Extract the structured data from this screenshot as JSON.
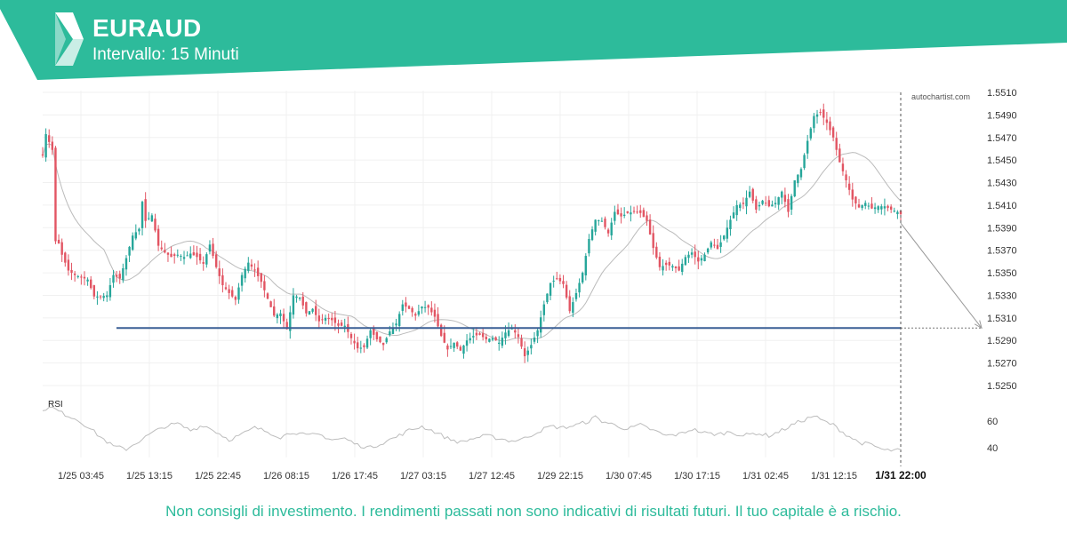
{
  "header": {
    "symbol": "EURAUD",
    "interval": "Intervallo: 15 Minuti"
  },
  "footer": {
    "disclaimer": "Non consigli di investimento. I rendimenti passati non sono indicativi di risultati futuri. Il tuo capitale è a rischio."
  },
  "colors": {
    "brand": "#2dbb9b",
    "up": "#26a69a",
    "down": "#e25563",
    "support": "#3a5f95",
    "ma": "#bbbbbb",
    "rsi": "#bdbdbd",
    "grid": "#f0f0f0",
    "axis_text": "#333333"
  },
  "chart_data": {
    "type": "candlestick",
    "watermark": "autochartist.com",
    "y_ticks": [
      1.551,
      1.549,
      1.547,
      1.545,
      1.543,
      1.541,
      1.539,
      1.537,
      1.535,
      1.533,
      1.531,
      1.529,
      1.527,
      1.525
    ],
    "ylim": [
      1.525,
      1.551
    ],
    "x_ticks": [
      "1/25 03:45",
      "1/25 13:15",
      "1/25 22:45",
      "1/26 08:15",
      "1/26 17:45",
      "1/27 03:15",
      "1/27 12:45",
      "1/29 22:15",
      "1/30 07:45",
      "1/30 17:15",
      "1/31 02:45",
      "1/31 12:15"
    ],
    "current_time_label": "1/31 22:00",
    "support_level": 1.5301,
    "forecast_target": 1.5301,
    "price_path": [
      [
        0,
        1.5454
      ],
      [
        1,
        1.5473
      ],
      [
        2,
        1.5466
      ],
      [
        3,
        1.5459
      ],
      [
        4,
        1.5378
      ],
      [
        5,
        1.5376
      ],
      [
        6,
        1.5366
      ],
      [
        8,
        1.5352
      ],
      [
        10,
        1.5348
      ],
      [
        12,
        1.5346
      ],
      [
        14,
        1.5344
      ],
      [
        16,
        1.5329
      ],
      [
        18,
        1.5329
      ],
      [
        20,
        1.533
      ],
      [
        22,
        1.5348
      ],
      [
        24,
        1.5345
      ],
      [
        26,
        1.5363
      ],
      [
        28,
        1.5383
      ],
      [
        30,
        1.5389
      ],
      [
        31,
        1.5413
      ],
      [
        32,
        1.5396
      ],
      [
        34,
        1.5401
      ],
      [
        36,
        1.5374
      ],
      [
        38,
        1.5368
      ],
      [
        40,
        1.5364
      ],
      [
        42,
        1.5366
      ],
      [
        44,
        1.5364
      ],
      [
        46,
        1.5367
      ],
      [
        48,
        1.5364
      ],
      [
        50,
        1.5358
      ],
      [
        52,
        1.5375
      ],
      [
        54,
        1.5355
      ],
      [
        56,
        1.5339
      ],
      [
        58,
        1.5332
      ],
      [
        60,
        1.5326
      ],
      [
        62,
        1.5348
      ],
      [
        64,
        1.5359
      ],
      [
        66,
        1.5352
      ],
      [
        68,
        1.5342
      ],
      [
        70,
        1.5327
      ],
      [
        72,
        1.5312
      ],
      [
        74,
        1.5314
      ],
      [
        76,
        1.53
      ],
      [
        78,
        1.533
      ],
      [
        80,
        1.5328
      ],
      [
        82,
        1.5314
      ],
      [
        84,
        1.5318
      ],
      [
        86,
        1.5307
      ],
      [
        88,
        1.531
      ],
      [
        90,
        1.5308
      ],
      [
        92,
        1.5303
      ],
      [
        94,
        1.5303
      ],
      [
        96,
        1.5292
      ],
      [
        98,
        1.5283
      ],
      [
        100,
        1.5284
      ],
      [
        102,
        1.5299
      ],
      [
        104,
        1.5291
      ],
      [
        106,
        1.5286
      ],
      [
        108,
        1.5298
      ],
      [
        110,
        1.5305
      ],
      [
        112,
        1.5322
      ],
      [
        114,
        1.5318
      ],
      [
        116,
        1.5312
      ],
      [
        118,
        1.532
      ],
      [
        120,
        1.5319
      ],
      [
        122,
        1.5311
      ],
      [
        124,
        1.5294
      ],
      [
        126,
        1.5282
      ],
      [
        128,
        1.5288
      ],
      [
        130,
        1.5281
      ],
      [
        132,
        1.529
      ],
      [
        134,
        1.5294
      ],
      [
        136,
        1.5295
      ],
      [
        138,
        1.5291
      ],
      [
        140,
        1.5292
      ],
      [
        142,
        1.5288
      ],
      [
        144,
        1.5297
      ],
      [
        146,
        1.5301
      ],
      [
        148,
        1.5293
      ],
      [
        150,
        1.5276
      ],
      [
        152,
        1.5286
      ],
      [
        154,
        1.5299
      ],
      [
        156,
        1.5322
      ],
      [
        158,
        1.5341
      ],
      [
        160,
        1.5345
      ],
      [
        162,
        1.534
      ],
      [
        164,
        1.5316
      ],
      [
        166,
        1.5332
      ],
      [
        168,
        1.535
      ],
      [
        170,
        1.538
      ],
      [
        172,
        1.5397
      ],
      [
        174,
        1.5396
      ],
      [
        176,
        1.5385
      ],
      [
        178,
        1.5404
      ],
      [
        180,
        1.54
      ],
      [
        182,
        1.5403
      ],
      [
        184,
        1.5404
      ],
      [
        186,
        1.5403
      ],
      [
        188,
        1.5396
      ],
      [
        190,
        1.5372
      ],
      [
        192,
        1.5355
      ],
      [
        194,
        1.5357
      ],
      [
        196,
        1.5356
      ],
      [
        198,
        1.5352
      ],
      [
        200,
        1.5364
      ],
      [
        202,
        1.5368
      ],
      [
        204,
        1.536
      ],
      [
        206,
        1.5366
      ],
      [
        208,
        1.5377
      ],
      [
        210,
        1.5371
      ],
      [
        212,
        1.5383
      ],
      [
        214,
        1.5397
      ],
      [
        216,
        1.541
      ],
      [
        218,
        1.5411
      ],
      [
        220,
        1.5422
      ],
      [
        222,
        1.5406
      ],
      [
        224,
        1.5414
      ],
      [
        226,
        1.5409
      ],
      [
        228,
        1.5412
      ],
      [
        230,
        1.5422
      ],
      [
        232,
        1.5404
      ],
      [
        234,
        1.5432
      ],
      [
        236,
        1.5442
      ],
      [
        238,
        1.5467
      ],
      [
        240,
        1.5489
      ],
      [
        242,
        1.5492
      ],
      [
        244,
        1.5483
      ],
      [
        246,
        1.547
      ],
      [
        248,
        1.5448
      ],
      [
        250,
        1.5432
      ],
      [
        252,
        1.5415
      ],
      [
        254,
        1.5408
      ],
      [
        256,
        1.5412
      ],
      [
        258,
        1.5407
      ],
      [
        260,
        1.5409
      ],
      [
        262,
        1.5409
      ],
      [
        264,
        1.5406
      ],
      [
        266,
        1.5404
      ],
      [
        267,
        1.5402
      ]
    ],
    "rsi": {
      "label": "RSI",
      "y_ticks": [
        60,
        40
      ],
      "path": [
        [
          0,
          69
        ],
        [
          3,
          70
        ],
        [
          6,
          66
        ],
        [
          10,
          62
        ],
        [
          14,
          56
        ],
        [
          18,
          48
        ],
        [
          22,
          41
        ],
        [
          26,
          39
        ],
        [
          30,
          45
        ],
        [
          34,
          51
        ],
        [
          38,
          56
        ],
        [
          42,
          58
        ],
        [
          46,
          53
        ],
        [
          50,
          57
        ],
        [
          54,
          52
        ],
        [
          58,
          46
        ],
        [
          62,
          50
        ],
        [
          66,
          55
        ],
        [
          70,
          52
        ],
        [
          74,
          48
        ],
        [
          78,
          52
        ],
        [
          82,
          49
        ],
        [
          86,
          50
        ],
        [
          90,
          46
        ],
        [
          94,
          47
        ],
        [
          98,
          42
        ],
        [
          102,
          40
        ],
        [
          106,
          44
        ],
        [
          110,
          48
        ],
        [
          114,
          53
        ],
        [
          118,
          56
        ],
        [
          122,
          52
        ],
        [
          126,
          47
        ],
        [
          130,
          44
        ],
        [
          134,
          47
        ],
        [
          138,
          49
        ],
        [
          142,
          47
        ],
        [
          146,
          45
        ],
        [
          150,
          47
        ],
        [
          154,
          52
        ],
        [
          158,
          56
        ],
        [
          162,
          55
        ],
        [
          166,
          57
        ],
        [
          170,
          60
        ],
        [
          172,
          63
        ],
        [
          174,
          60
        ],
        [
          178,
          57
        ],
        [
          182,
          54
        ],
        [
          186,
          57
        ],
        [
          190,
          53
        ],
        [
          194,
          49
        ],
        [
          198,
          50
        ],
        [
          202,
          54
        ],
        [
          206,
          51
        ],
        [
          210,
          50
        ],
        [
          214,
          52
        ],
        [
          218,
          49
        ],
        [
          222,
          51
        ],
        [
          226,
          49
        ],
        [
          230,
          53
        ],
        [
          234,
          58
        ],
        [
          238,
          62
        ],
        [
          240,
          64
        ],
        [
          242,
          61
        ],
        [
          246,
          57
        ],
        [
          250,
          50
        ],
        [
          254,
          44
        ],
        [
          258,
          42
        ],
        [
          262,
          38
        ],
        [
          267,
          38
        ]
      ]
    }
  }
}
